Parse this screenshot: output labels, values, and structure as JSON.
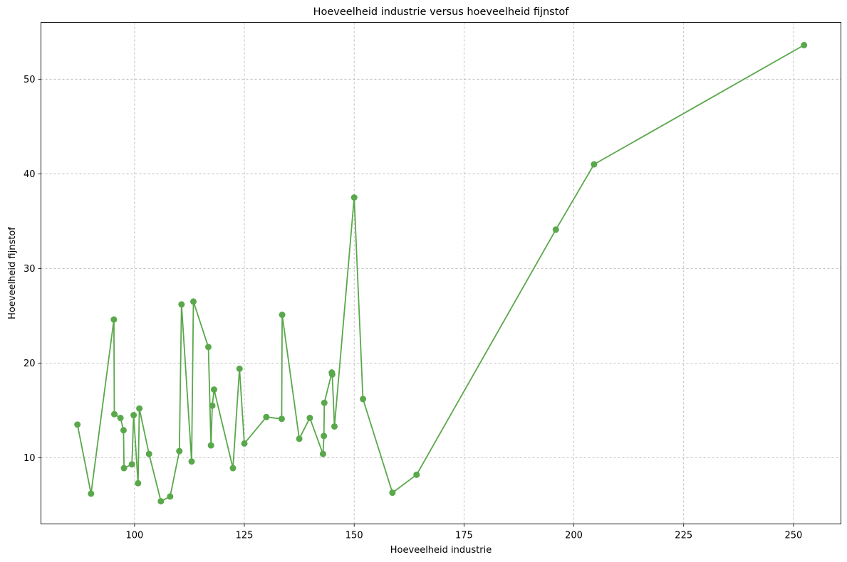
{
  "chart_data": {
    "type": "line",
    "title": "Hoeveelheid industrie versus hoeveelheid fijnstof",
    "xlabel": "Hoeveelheid industrie",
    "ylabel": "Hoeveelheid fijnstof",
    "xlim": [
      78.7,
      260.8
    ],
    "ylim": [
      3.0,
      56.0
    ],
    "xticks": [
      100,
      125,
      150,
      175,
      200,
      225,
      250
    ],
    "yticks": [
      10,
      20,
      30,
      40,
      50
    ],
    "grid": true,
    "marker": "circle",
    "color": "#59a84b",
    "series": [
      {
        "x": [
          87.0,
          90.1,
          95.3,
          95.4,
          96.8,
          97.5,
          97.6,
          99.4,
          99.8,
          100.8,
          101.1,
          103.3,
          106.0,
          108.1,
          110.2,
          110.7,
          113.0,
          113.4,
          116.8,
          117.4,
          117.7,
          118.1,
          122.4,
          123.9,
          125.0,
          130.0,
          133.5,
          133.6,
          137.5,
          139.9,
          142.9,
          143.1,
          143.2,
          144.9,
          145.0,
          145.5,
          150.0,
          152.0,
          158.7,
          164.2,
          195.9,
          204.6,
          252.4
        ],
        "y": [
          13.5,
          6.2,
          24.6,
          14.6,
          14.2,
          12.9,
          8.9,
          9.3,
          14.5,
          7.3,
          15.2,
          10.4,
          5.4,
          5.9,
          10.7,
          26.2,
          9.6,
          26.5,
          21.7,
          11.3,
          15.5,
          17.2,
          8.9,
          19.4,
          11.5,
          14.3,
          14.1,
          25.1,
          12.0,
          14.2,
          10.4,
          12.3,
          15.8,
          19.0,
          18.8,
          13.3,
          37.5,
          16.2,
          6.3,
          8.2,
          34.1,
          41.0,
          53.6
        ]
      }
    ]
  }
}
